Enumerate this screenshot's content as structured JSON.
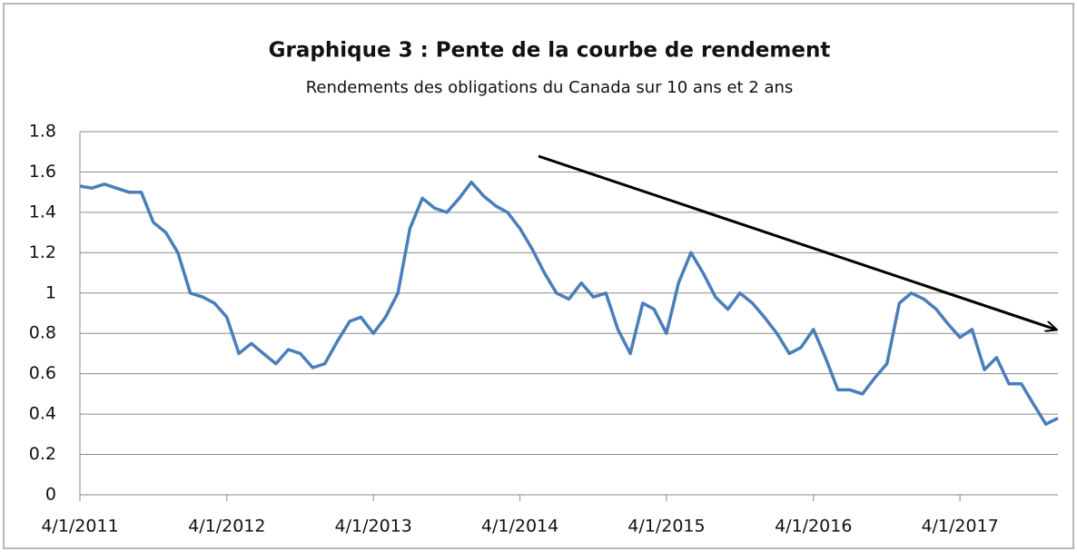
{
  "chart_data": {
    "type": "line",
    "title": "Graphique 3 : Pente de la courbe de rendement",
    "subtitle": "Rendements des obligations du Canada sur 10 ans et 2 ans",
    "x": [
      "4/1/2011",
      "5/1/2011",
      "6/1/2011",
      "7/1/2011",
      "8/1/2011",
      "9/1/2011",
      "10/1/2011",
      "11/1/2011",
      "12/1/2011",
      "1/1/2012",
      "2/1/2012",
      "3/1/2012",
      "4/1/2012",
      "5/1/2012",
      "6/1/2012",
      "7/1/2012",
      "8/1/2012",
      "9/1/2012",
      "10/1/2012",
      "11/1/2012",
      "12/1/2012",
      "1/1/2013",
      "2/1/2013",
      "3/1/2013",
      "4/1/2013",
      "5/1/2013",
      "6/1/2013",
      "7/1/2013",
      "8/1/2013",
      "9/1/2013",
      "10/1/2013",
      "11/1/2013",
      "12/1/2013",
      "1/1/2014",
      "2/1/2014",
      "3/1/2014",
      "4/1/2014",
      "5/1/2014",
      "6/1/2014",
      "7/1/2014",
      "8/1/2014",
      "9/1/2014",
      "10/1/2014",
      "11/1/2014",
      "12/1/2014",
      "1/1/2015",
      "2/1/2015",
      "3/1/2015",
      "4/1/2015",
      "5/1/2015",
      "6/1/2015",
      "7/1/2015",
      "8/1/2015",
      "9/1/2015",
      "10/1/2015",
      "11/1/2015",
      "12/1/2015",
      "1/1/2016",
      "2/1/2016",
      "3/1/2016",
      "4/1/2016",
      "5/1/2016",
      "6/1/2016",
      "7/1/2016",
      "8/1/2016",
      "9/1/2016",
      "10/1/2016",
      "11/1/2016",
      "12/1/2016",
      "1/1/2017",
      "2/1/2017",
      "3/1/2017",
      "4/1/2017",
      "5/1/2017",
      "6/1/2017",
      "7/1/2017",
      "8/1/2017",
      "9/1/2017",
      "10/1/2017",
      "11/1/2017",
      "12/1/2017"
    ],
    "series": [
      {
        "name": "Pente",
        "color": "#4a7ebb",
        "values": [
          1.53,
          1.52,
          1.54,
          1.52,
          1.5,
          1.5,
          1.35,
          1.3,
          1.2,
          1.0,
          0.98,
          0.95,
          0.88,
          0.7,
          0.75,
          0.7,
          0.65,
          0.72,
          0.7,
          0.63,
          0.65,
          0.76,
          0.86,
          0.88,
          0.8,
          0.88,
          1.0,
          1.32,
          1.47,
          1.42,
          1.4,
          1.47,
          1.55,
          1.48,
          1.43,
          1.4,
          1.32,
          1.22,
          1.1,
          1.0,
          0.97,
          1.05,
          0.98,
          1.0,
          0.82,
          0.7,
          0.95,
          0.92,
          0.8,
          1.05,
          1.2,
          1.1,
          0.98,
          0.92,
          1.0,
          0.95,
          0.88,
          0.8,
          0.7,
          0.73,
          0.82,
          0.68,
          0.52,
          0.52,
          0.5,
          0.58,
          0.65,
          0.95,
          1.0,
          0.97,
          0.92,
          0.85,
          0.78,
          0.82,
          0.62,
          0.68,
          0.55,
          0.55,
          0.45,
          0.35,
          0.38
        ]
      }
    ],
    "xlim": [
      "4/1/2011",
      "12/1/2017"
    ],
    "xticks": [
      "4/1/2011",
      "4/1/2012",
      "4/1/2013",
      "4/1/2014",
      "4/1/2015",
      "4/1/2016",
      "4/1/2017"
    ],
    "ylim": [
      0,
      1.8
    ],
    "yticks": [
      0,
      0.2,
      0.4,
      0.6,
      0.8,
      1,
      1.2,
      1.4,
      1.6,
      1.8
    ],
    "grid": true
  }
}
